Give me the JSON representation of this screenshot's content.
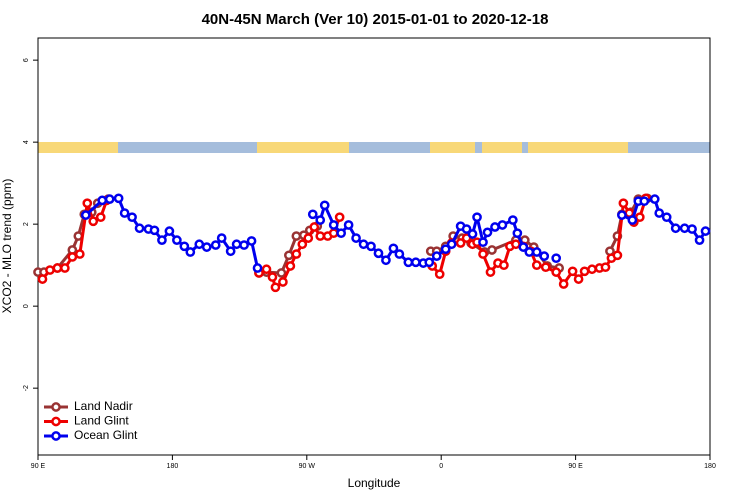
{
  "chart_data": {
    "type": "line",
    "title": "40N-45N March (Ver 10)   2015-01-01 to 2020-12-18",
    "x_label": "Longitude",
    "y_label": "XCO2 - MLO trend (ppm)",
    "xlim": [
      90,
      540
    ],
    "ylim": [
      -3.63,
      6.54
    ],
    "xticks": [
      {
        "value": 90,
        "label": "90 E"
      },
      {
        "value": 180,
        "label": "180"
      },
      {
        "value": 270,
        "label": "90 W"
      },
      {
        "value": 360,
        "label": "0"
      },
      {
        "value": 450,
        "label": "90 E"
      },
      {
        "value": 540,
        "label": "180"
      }
    ],
    "yticks": [
      6,
      4,
      2,
      0,
      -2
    ],
    "legend": "bottom-left",
    "series": [
      {
        "name": "Land Nadir",
        "color": "#993333",
        "x": [
          90,
          94,
          103,
          113,
          117,
          121,
          126,
          130,
          137,
          null,
          238,
          243,
          253,
          258,
          263,
          268,
          272,
          277,
          null,
          353,
          357,
          363,
          368,
          374,
          380,
          389,
          394,
          410,
          416,
          422,
          431,
          439,
          null,
          473,
          478,
          481,
          487,
          492,
          498
        ],
        "values": [
          0.83,
          0.83,
          0.93,
          1.37,
          1.71,
          2.24,
          2.29,
          2.51,
          2.61,
          null,
          0.81,
          0.83,
          0.81,
          1.24,
          1.71,
          1.73,
          1.85,
          1.95,
          null,
          1.34,
          1.34,
          1.46,
          1.71,
          1.66,
          1.54,
          1.32,
          1.37,
          1.61,
          1.61,
          1.44,
          0.98,
          0.93,
          null,
          1.34,
          1.71,
          2.24,
          2.29,
          2.61,
          2.63
        ]
      },
      {
        "name": "Land Glint",
        "color": "#ee0000",
        "x": [
          93,
          98,
          103,
          108,
          113,
          118,
          123,
          127,
          132,
          136,
          null,
          238,
          243,
          247,
          249,
          254,
          259,
          263,
          267,
          271,
          275,
          279,
          284,
          288,
          292,
          null,
          354,
          359,
          363,
          367,
          373,
          377,
          381,
          384,
          388,
          393,
          398,
          402,
          406,
          410,
          415,
          420,
          424,
          430,
          437,
          442,
          448,
          452,
          456,
          461,
          466,
          470,
          474,
          478,
          482,
          486,
          489,
          493,
          497
        ],
        "values": [
          0.66,
          0.88,
          0.93,
          0.93,
          1.2,
          1.27,
          2.51,
          2.07,
          2.17,
          2.58,
          null,
          0.81,
          0.9,
          0.71,
          0.46,
          0.59,
          0.98,
          1.27,
          1.51,
          1.66,
          1.93,
          1.71,
          1.71,
          1.78,
          2.17,
          null,
          0.98,
          0.78,
          1.34,
          1.54,
          1.54,
          1.66,
          1.51,
          1.56,
          1.27,
          0.83,
          1.05,
          1.0,
          1.46,
          1.51,
          1.46,
          1.34,
          1.0,
          0.95,
          0.83,
          0.54,
          0.85,
          0.66,
          0.85,
          0.9,
          0.93,
          0.95,
          1.17,
          1.24,
          2.51,
          2.27,
          2.05,
          2.17,
          2.63
        ]
      },
      {
        "name": "Ocean Glint",
        "color": "#0000ee",
        "x": [
          122,
          133,
          138,
          144,
          148,
          153,
          158,
          164,
          168,
          173,
          178,
          183,
          188,
          192,
          198,
          203,
          209,
          213,
          219,
          223,
          228,
          233,
          237,
          null,
          274,
          279,
          282,
          288,
          293,
          298,
          303,
          308,
          313,
          318,
          323,
          328,
          332,
          338,
          343,
          348,
          352,
          357,
          363,
          367,
          373,
          377,
          381,
          384,
          388,
          391,
          396,
          401,
          408,
          411,
          415,
          419,
          424,
          429,
          null,
          437,
          null,
          481,
          488,
          492,
          496,
          503,
          506,
          511,
          517,
          523,
          528,
          533,
          537
        ],
        "values": [
          2.22,
          2.58,
          2.61,
          2.63,
          2.27,
          2.17,
          1.9,
          1.88,
          1.85,
          1.61,
          1.83,
          1.61,
          1.46,
          1.32,
          1.51,
          1.44,
          1.49,
          1.66,
          1.34,
          1.51,
          1.49,
          1.59,
          0.93,
          null,
          2.24,
          2.1,
          2.46,
          1.98,
          1.78,
          1.98,
          1.66,
          1.51,
          1.46,
          1.29,
          1.12,
          1.41,
          1.27,
          1.07,
          1.07,
          1.05,
          1.07,
          1.22,
          1.39,
          1.51,
          1.95,
          1.88,
          1.76,
          2.17,
          1.56,
          1.8,
          1.93,
          1.98,
          2.1,
          1.78,
          1.44,
          1.32,
          1.32,
          1.22,
          null,
          1.17,
          null,
          2.22,
          2.1,
          2.56,
          2.56,
          2.61,
          2.27,
          2.17,
          1.9,
          1.9,
          1.88,
          1.61,
          1.83
        ]
      }
    ]
  }
}
